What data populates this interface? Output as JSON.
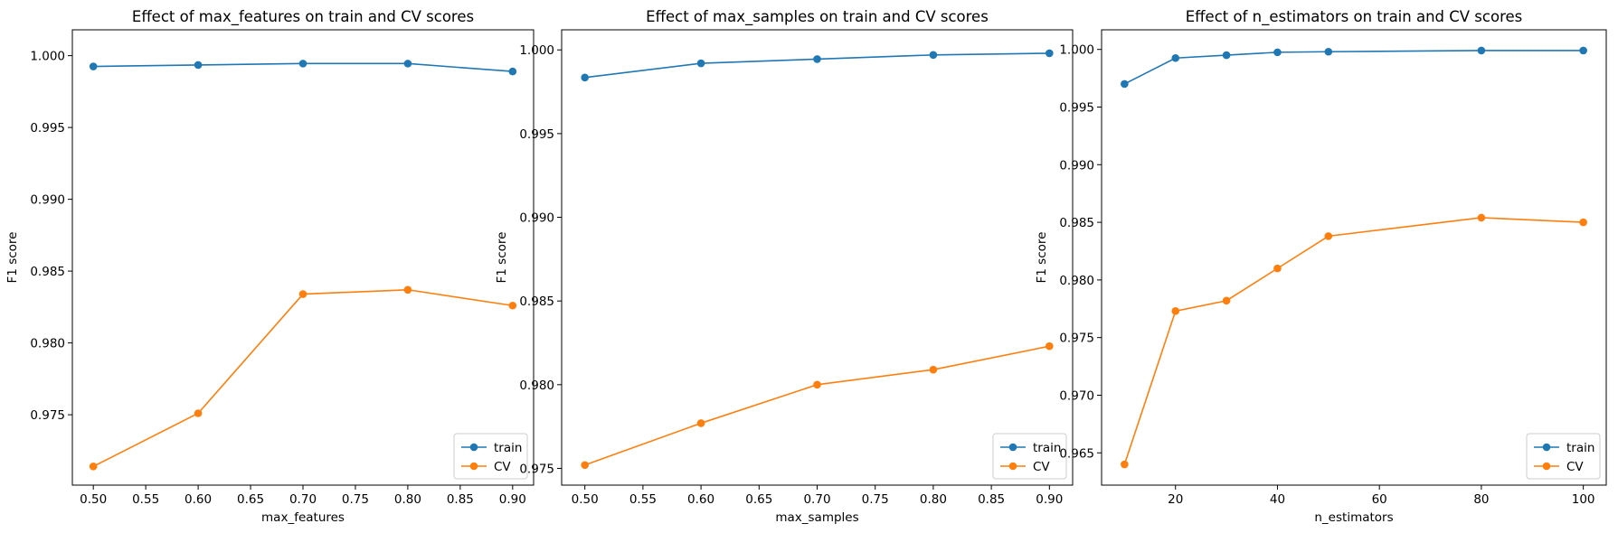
{
  "chart_data": [
    {
      "type": "line",
      "title": "Effect of max_features on train and CV scores",
      "xlabel": "max_features",
      "ylabel": "F1 score",
      "x": [
        0.5,
        0.6,
        0.7,
        0.8,
        0.9
      ],
      "xlim": [
        0.48,
        0.92
      ],
      "ylim": [
        0.9701,
        1.0018
      ],
      "xticks": [
        0.5,
        0.55,
        0.6,
        0.65,
        0.7,
        0.75,
        0.8,
        0.85,
        0.9
      ],
      "xtick_labels": [
        "0.50",
        "0.55",
        "0.60",
        "0.65",
        "0.70",
        "0.75",
        "0.80",
        "0.85",
        "0.90"
      ],
      "yticks": [
        0.975,
        0.98,
        0.985,
        0.99,
        0.995,
        1.0
      ],
      "ytick_labels": [
        "0.975",
        "0.980",
        "0.985",
        "0.990",
        "0.995",
        "1.000"
      ],
      "series": [
        {
          "name": "train",
          "color": "#1f77b4",
          "values": [
            0.99925,
            0.99935,
            0.99945,
            0.99945,
            0.9989
          ]
        },
        {
          "name": "CV",
          "color": "#ff7f0e",
          "values": [
            0.9714,
            0.9751,
            0.9834,
            0.9837,
            0.9826
          ]
        }
      ],
      "legend": "lower-right",
      "grid": false
    },
    {
      "type": "line",
      "title": "Effect of max_samples on train and CV scores",
      "xlabel": "max_samples",
      "ylabel": "F1 score",
      "x": [
        0.5,
        0.6,
        0.7,
        0.8,
        0.9
      ],
      "xlim": [
        0.48,
        0.92
      ],
      "ylim": [
        0.974,
        1.0012
      ],
      "xticks": [
        0.5,
        0.55,
        0.6,
        0.65,
        0.7,
        0.75,
        0.8,
        0.85,
        0.9
      ],
      "xtick_labels": [
        "0.50",
        "0.55",
        "0.60",
        "0.65",
        "0.70",
        "0.75",
        "0.80",
        "0.85",
        "0.90"
      ],
      "yticks": [
        0.975,
        0.98,
        0.985,
        0.99,
        0.995,
        1.0
      ],
      "ytick_labels": [
        "0.975",
        "0.980",
        "0.985",
        "0.990",
        "0.995",
        "1.000"
      ],
      "series": [
        {
          "name": "train",
          "color": "#1f77b4",
          "values": [
            0.99835,
            0.9992,
            0.99945,
            0.9997,
            0.9998
          ]
        },
        {
          "name": "CV",
          "color": "#ff7f0e",
          "values": [
            0.9752,
            0.9777,
            0.98,
            0.9809,
            0.9823
          ]
        }
      ],
      "legend": "lower-right",
      "grid": false
    },
    {
      "type": "line",
      "title": "Effect of n_estimators on train and CV scores",
      "xlabel": "n_estimators",
      "ylabel": "F1 score",
      "x": [
        10,
        20,
        30,
        40,
        50,
        80,
        100
      ],
      "xlim": [
        5.5,
        104.5
      ],
      "ylim": [
        0.9622,
        1.0017
      ],
      "xticks": [
        20,
        40,
        60,
        80,
        100
      ],
      "xtick_labels": [
        "20",
        "40",
        "60",
        "80",
        "100"
      ],
      "yticks": [
        0.965,
        0.97,
        0.975,
        0.98,
        0.985,
        0.99,
        0.995,
        1.0
      ],
      "ytick_labels": [
        "0.965",
        "0.970",
        "0.975",
        "0.980",
        "0.985",
        "0.990",
        "0.995",
        "1.000"
      ],
      "series": [
        {
          "name": "train",
          "color": "#1f77b4",
          "values": [
            0.997,
            0.99925,
            0.9995,
            0.99975,
            0.9998,
            0.9999,
            0.9999
          ]
        },
        {
          "name": "CV",
          "color": "#ff7f0e",
          "values": [
            0.964,
            0.9773,
            0.9782,
            0.981,
            0.9838,
            0.9854,
            0.985
          ]
        }
      ],
      "legend": "lower-right",
      "grid": false
    }
  ]
}
